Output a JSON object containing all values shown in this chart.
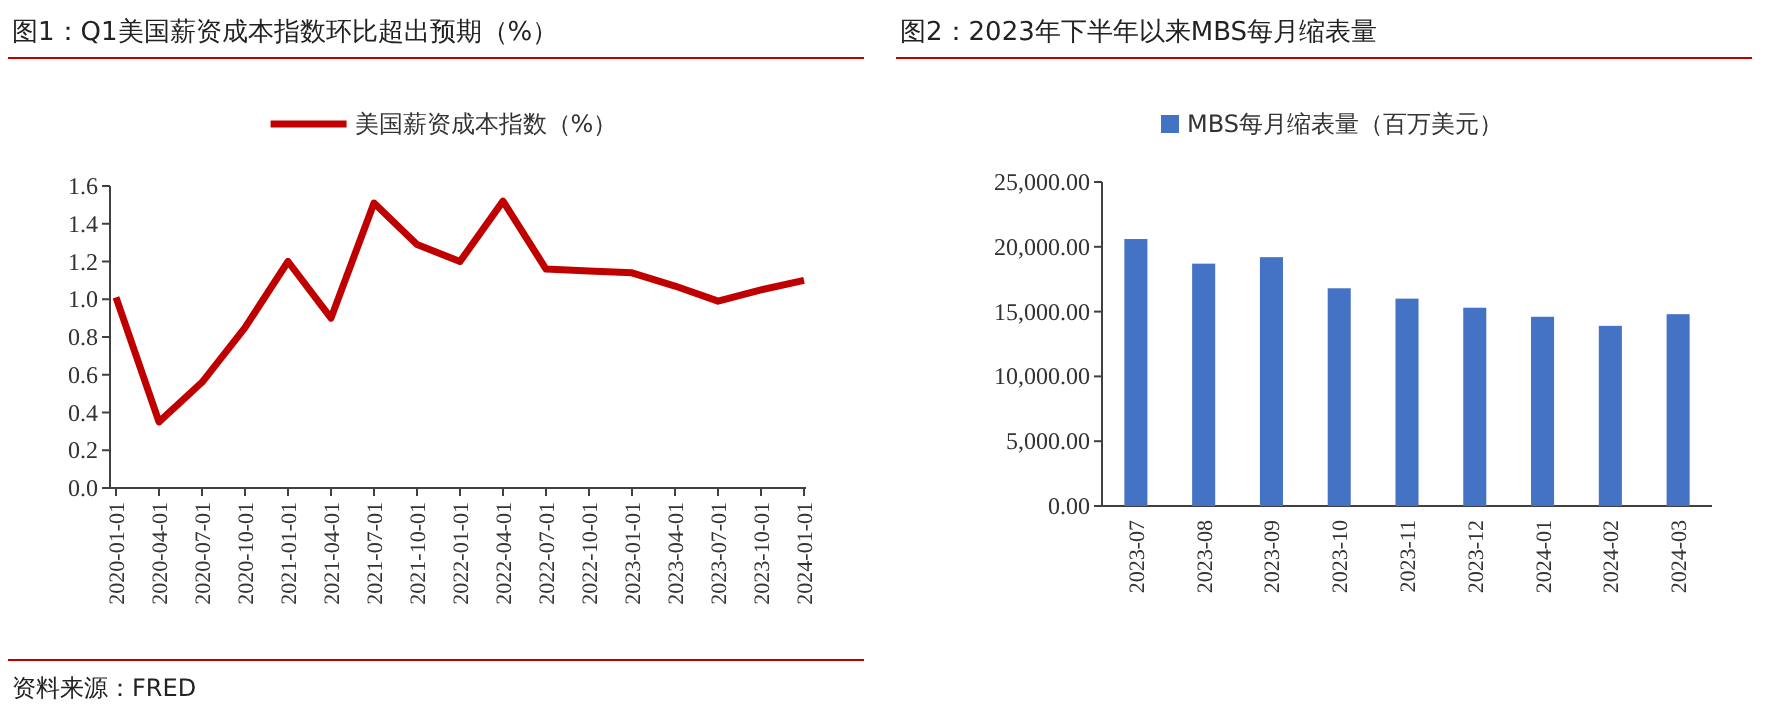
{
  "chart_data": [
    {
      "type": "line",
      "title": "图1：Q1美国薪资成本指数环比超出预期（%）",
      "categories": [
        "2020-01-01",
        "2020-04-01",
        "2020-07-01",
        "2020-10-01",
        "2021-01-01",
        "2021-04-01",
        "2021-07-01",
        "2021-10-01",
        "2022-01-01",
        "2022-04-01",
        "2022-07-01",
        "2022-10-01",
        "2023-01-01",
        "2023-04-01",
        "2023-07-01",
        "2023-10-01",
        "2024-01-01"
      ],
      "series": [
        {
          "name": "美国薪资成本指数（%）",
          "color": "#c00000",
          "values": [
            1.01,
            0.35,
            0.56,
            0.85,
            1.2,
            0.9,
            1.51,
            1.29,
            1.2,
            1.52,
            1.16,
            1.15,
            1.14,
            1.07,
            0.99,
            1.05,
            1.1
          ]
        }
      ],
      "ylim": [
        0,
        1.6
      ],
      "yticks": [
        {
          "value": 0,
          "label": "0.0"
        },
        {
          "value": 0.2,
          "label": "0.2"
        },
        {
          "value": 0.4,
          "label": "0.4"
        },
        {
          "value": 0.6,
          "label": "0.6"
        },
        {
          "value": 0.8,
          "label": "0.8"
        },
        {
          "value": 1,
          "label": "1.0"
        },
        {
          "value": 1.2,
          "label": "1.2"
        },
        {
          "value": 1.4,
          "label": "1.4"
        },
        {
          "value": 1.6,
          "label": "1.6"
        }
      ],
      "legend": "top",
      "annotations": [
        "资料来源：FRED"
      ]
    },
    {
      "type": "bar",
      "title": "图2：2023年下半年以来MBS每月缩表量",
      "categories": [
        "2023-07",
        "2023-08",
        "2023-09",
        "2023-10",
        "2023-11",
        "2023-12",
        "2024-01",
        "2024-02",
        "2024-03"
      ],
      "series": [
        {
          "name": "MBS每月缩表量（百万美元）",
          "color": "#4472c4",
          "values": [
            20600,
            18700,
            19200,
            16800,
            16000,
            15300,
            14600,
            13900,
            14800
          ]
        }
      ],
      "ylim": [
        0,
        25000
      ],
      "yticks": [
        {
          "value": 0,
          "label": "0.00"
        },
        {
          "value": 5000,
          "label": "5,000.00"
        },
        {
          "value": 10000,
          "label": "10,000.00"
        },
        {
          "value": 15000,
          "label": "15,000.00"
        },
        {
          "value": 20000,
          "label": "20,000.00"
        },
        {
          "value": 25000,
          "label": "25,000.00"
        }
      ],
      "legend": "top"
    }
  ]
}
